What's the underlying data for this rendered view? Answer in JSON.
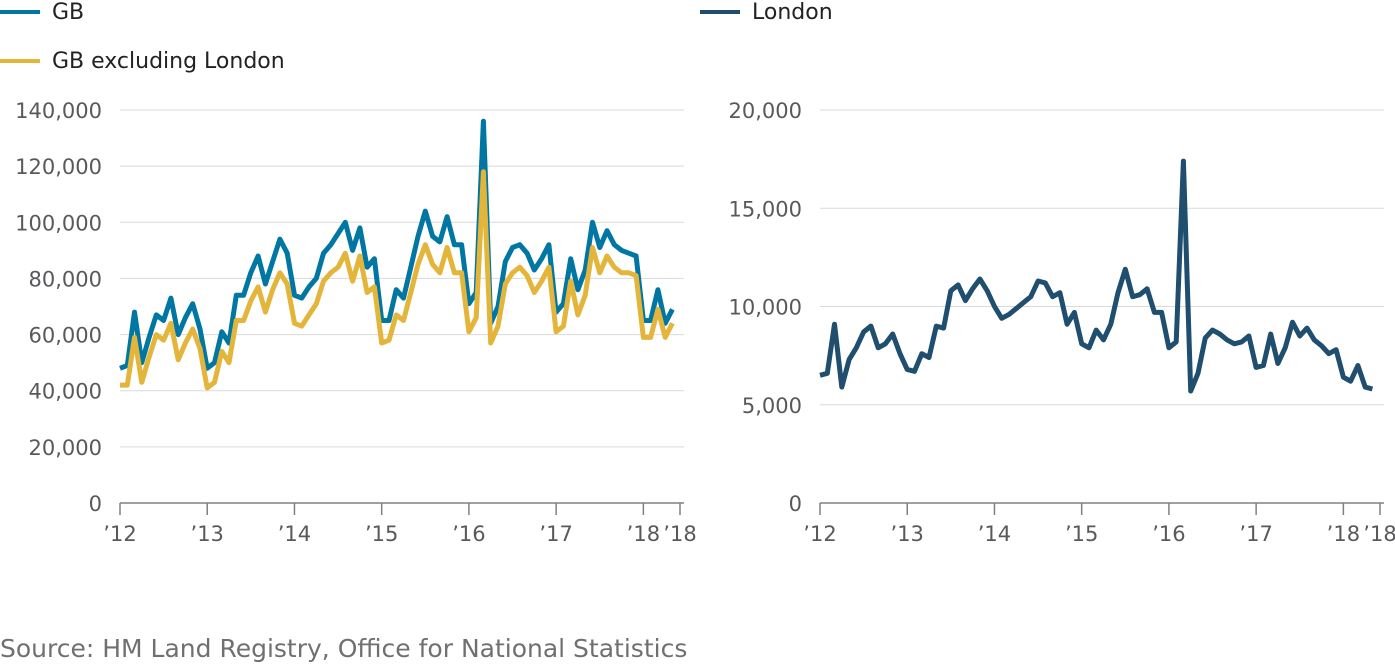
{
  "source": "Source: HM Land Registry, Office for National Statistics",
  "chart_data": [
    {
      "type": "line",
      "ylim": [
        0,
        140000
      ],
      "yticks": [
        0,
        20000,
        40000,
        60000,
        80000,
        100000,
        120000,
        140000
      ],
      "ytick_labels": [
        "0",
        "20,000",
        "40,000",
        "60,000",
        "80,000",
        "100,000",
        "120,000",
        "140,000"
      ],
      "xlim": [
        2012,
        2018.42
      ],
      "xticks": [
        2012,
        2013,
        2014,
        2015,
        2016,
        2017,
        2018,
        2018.42
      ],
      "xtick_labels": [
        "’12",
        "’13",
        "’14",
        "’15",
        "’16",
        "’17",
        "’18",
        "’18"
      ],
      "series": [
        {
          "name": "GB",
          "color": "#0076a3",
          "values": [
            48000,
            49000,
            68000,
            50000,
            59000,
            67000,
            65000,
            73000,
            60000,
            66000,
            71000,
            62000,
            48000,
            50000,
            61000,
            57000,
            74000,
            74000,
            82000,
            88000,
            78000,
            86000,
            94000,
            89000,
            74000,
            73000,
            77000,
            80000,
            89000,
            92000,
            96000,
            100000,
            90000,
            98000,
            84000,
            87000,
            65000,
            65000,
            76000,
            73000,
            84000,
            95000,
            104000,
            95000,
            93000,
            102000,
            92000,
            92000,
            71000,
            75000,
            136000,
            64000,
            70000,
            86000,
            91000,
            92000,
            89000,
            83000,
            87000,
            92000,
            68000,
            71000,
            87000,
            76000,
            83000,
            100000,
            91000,
            97000,
            92000,
            90000,
            89000,
            88000,
            65000,
            65000,
            76000,
            64000,
            69000
          ]
        },
        {
          "name": "GB excluding London",
          "color": "#e3b53a",
          "values": [
            42000,
            42000,
            59000,
            43000,
            52000,
            60000,
            58000,
            64000,
            51000,
            57000,
            62000,
            55000,
            41000,
            43000,
            54000,
            50000,
            65000,
            65000,
            72000,
            77000,
            68000,
            76000,
            82000,
            78000,
            64000,
            63000,
            67000,
            71000,
            79000,
            82000,
            84000,
            89000,
            79000,
            88000,
            75000,
            77000,
            57000,
            58000,
            67000,
            65000,
            75000,
            85000,
            92000,
            85000,
            82000,
            91000,
            82000,
            82000,
            61000,
            66000,
            118000,
            57000,
            63000,
            78000,
            82000,
            84000,
            81000,
            75000,
            79000,
            84000,
            61000,
            63000,
            79000,
            67000,
            74000,
            91000,
            82000,
            88000,
            84000,
            82000,
            82000,
            81000,
            59000,
            59000,
            69000,
            59000,
            64000
          ]
        }
      ]
    },
    {
      "type": "line",
      "ylim": [
        0,
        20000
      ],
      "yticks": [
        0,
        5000,
        10000,
        15000,
        20000
      ],
      "ytick_labels": [
        "0",
        "5,000",
        "10,000",
        "15,000",
        "20,000"
      ],
      "xlim": [
        2012,
        2018.42
      ],
      "xticks": [
        2012,
        2013,
        2014,
        2015,
        2016,
        2017,
        2018,
        2018.42
      ],
      "xtick_labels": [
        "’12",
        "’13",
        "’14",
        "’15",
        "’16",
        "’17",
        "’18",
        "’18"
      ],
      "series": [
        {
          "name": "London",
          "color": "#1f4e6e",
          "values": [
            6500,
            6600,
            9100,
            5900,
            7300,
            7900,
            8700,
            9000,
            7900,
            8100,
            8600,
            7600,
            6800,
            6700,
            7600,
            7400,
            9000,
            8900,
            10800,
            11100,
            10300,
            10900,
            11400,
            10800,
            10000,
            9400,
            9600,
            9900,
            10200,
            10500,
            11300,
            11200,
            10500,
            10700,
            9100,
            9700,
            8100,
            7900,
            8800,
            8300,
            9100,
            10700,
            11900,
            10500,
            10600,
            10900,
            9700,
            9700,
            7900,
            8200,
            17400,
            5700,
            6600,
            8400,
            8800,
            8600,
            8300,
            8100,
            8200,
            8500,
            6900,
            7000,
            8600,
            7100,
            7900,
            9200,
            8500,
            8900,
            8300,
            8000,
            7600,
            7800,
            6400,
            6200,
            7000,
            5900,
            5800
          ]
        }
      ]
    }
  ]
}
